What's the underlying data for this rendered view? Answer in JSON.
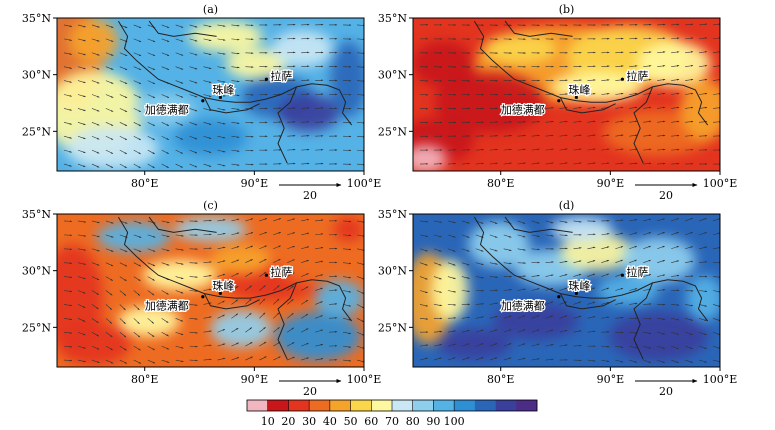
{
  "figure": {
    "panels": [
      {
        "label": "(a)",
        "field": "a",
        "x_ticks": [
          "80°E",
          "90°E",
          "100°E"
        ],
        "y_ticks": [
          "35°N",
          "30°N",
          "25°N"
        ],
        "places": {
          "lhasa": "拉萨",
          "everest": "珠峰",
          "kathmandu": "加德满都"
        },
        "reference_vector": "20"
      },
      {
        "label": "(b)",
        "field": "b",
        "x_ticks": [
          "80°E",
          "90°E",
          "100°E"
        ],
        "y_ticks": [
          "35°N",
          "30°N",
          "25°N"
        ],
        "places": {
          "lhasa": "拉萨",
          "everest": "珠峰",
          "kathmandu": "加德满都"
        },
        "reference_vector": "20"
      },
      {
        "label": "(c)",
        "field": "c",
        "x_ticks": [
          "80°E",
          "90°E",
          "100°E"
        ],
        "y_ticks": [
          "35°N",
          "30°N",
          "25°N"
        ],
        "places": {
          "lhasa": "拉萨",
          "everest": "珠峰",
          "kathmandu": "加德满都"
        },
        "reference_vector": "20"
      },
      {
        "label": "(d)",
        "field": "d",
        "x_ticks": [
          "80°E",
          "90°E",
          "100°E"
        ],
        "y_ticks": [
          "35°N",
          "30°N",
          "25°N"
        ],
        "places": {
          "lhasa": "拉萨",
          "everest": "珠峰",
          "kathmandu": "加德满都"
        },
        "reference_vector": "20"
      }
    ],
    "colorbar": {
      "labels": [
        "10",
        "20",
        "30",
        "40",
        "50",
        "60",
        "70",
        "80",
        "90",
        "100"
      ],
      "colors": [
        "#f2b6c0",
        "#c8161b",
        "#e3341f",
        "#ee6c22",
        "#f6a32c",
        "#fbd64b",
        "#fff8a0",
        "#c9e7f4",
        "#8fcfee",
        "#55b2e6",
        "#2f8fd5",
        "#2a66b8",
        "#3a3f9c",
        "#4b2c86"
      ]
    },
    "map_extent": {
      "lon": [
        72,
        100
      ],
      "lat": [
        21.5,
        35
      ]
    }
  }
}
